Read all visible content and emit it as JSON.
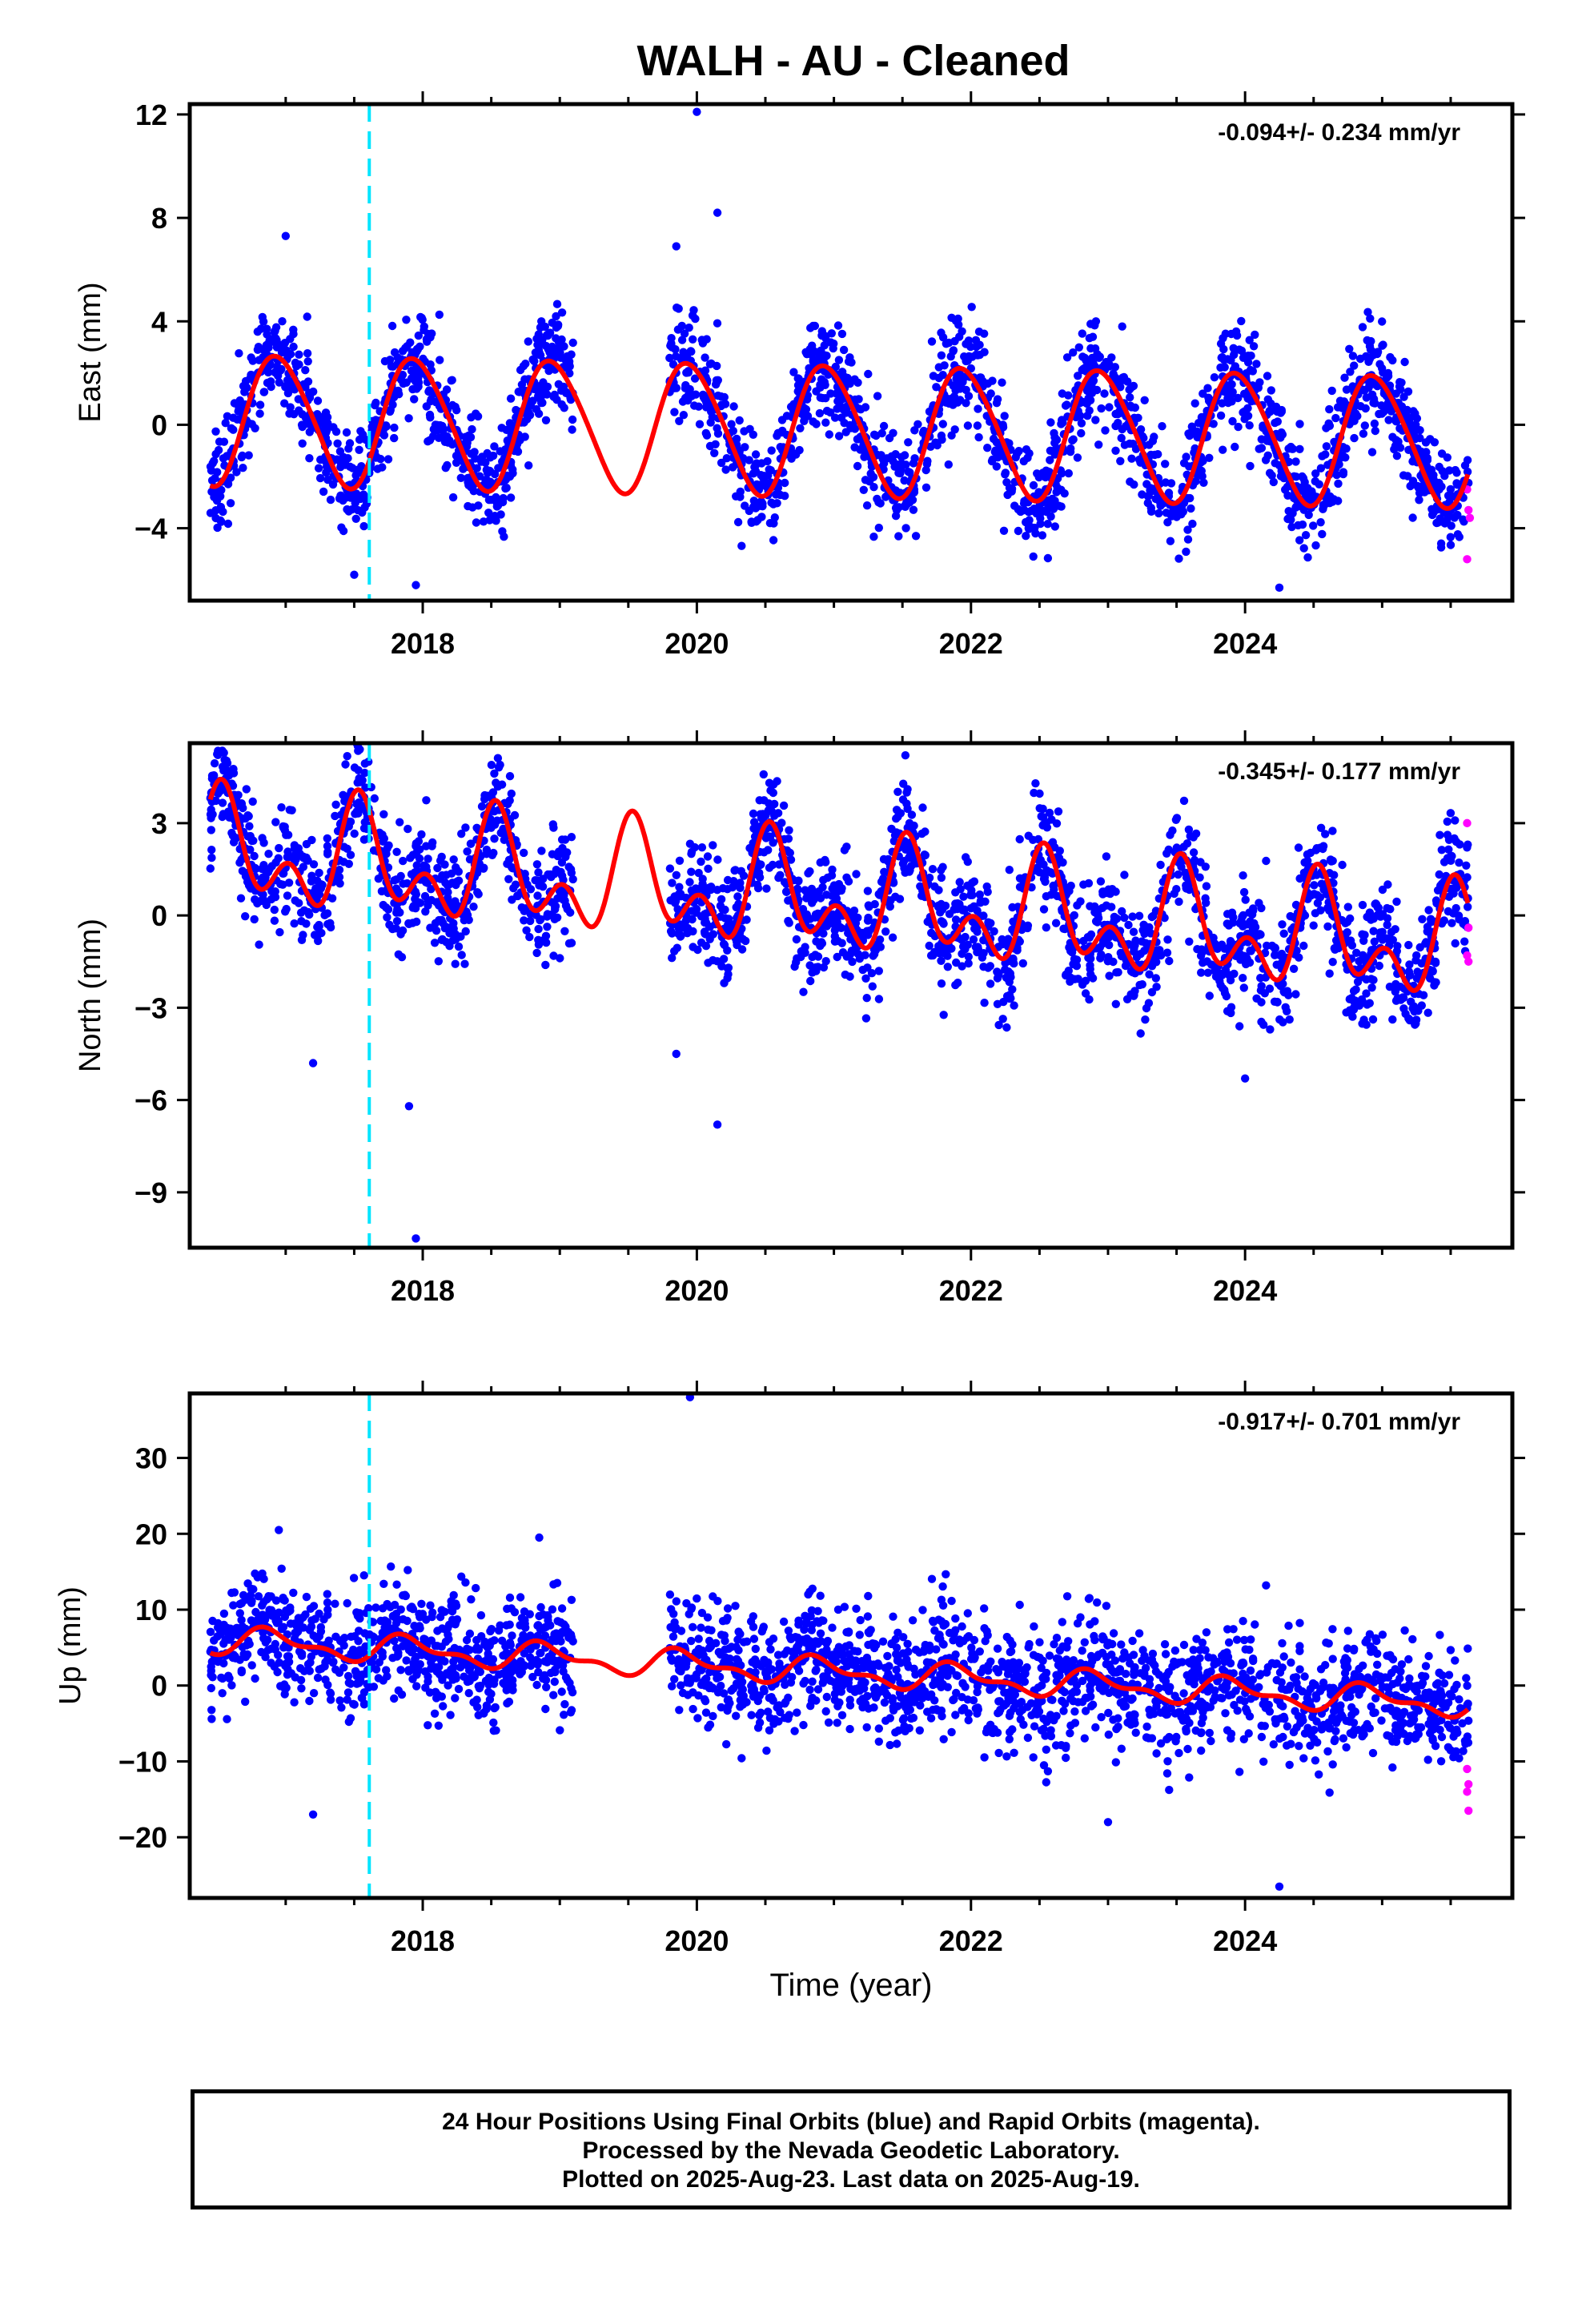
{
  "title": "WALH  - AU - Cleaned",
  "xlabel": "Time (year)",
  "colors": {
    "final_orbits": "#0000ff",
    "rapid_orbits": "#ff00ff",
    "model": "#ff0000",
    "event_line": "#00e5ff"
  },
  "footer": {
    "line1": "24 Hour Positions Using Final Orbits (blue) and Rapid Orbits (magenta).",
    "line2": "Processed by the Nevada Geodetic Laboratory.",
    "line3": "Plotted on 2025-Aug-23. Last data on 2025-Aug-19."
  },
  "chart_data": [
    {
      "type": "scatter",
      "ylabel": "East (mm)",
      "rate_text": "-0.094+/- 0.234 mm/yr",
      "xlim": [
        2016.3,
        2025.95
      ],
      "ylim": [
        -6.8,
        12.4
      ],
      "xticks": [
        2018,
        2020,
        2022,
        2024
      ],
      "yticks": [
        -4,
        0,
        4,
        8,
        12
      ],
      "event_line_x": 2017.61,
      "data_span": [
        2016.45,
        2025.63
      ],
      "gap": [
        2019.1,
        2019.8
      ],
      "model": {
        "offset": -0.2,
        "trend": -0.094,
        "annual_amp": 2.5,
        "annual_peak": 2017.95,
        "semiannual_amp": 0.25,
        "semiannual_phase": 0.3,
        "step_at_event": 0.5
      },
      "scatter_sigma": 1.0,
      "rapid_points": [
        [
          2025.62,
          -2.5
        ],
        [
          2025.63,
          -3.3
        ],
        [
          2025.64,
          -3.6
        ],
        [
          2025.62,
          -5.2
        ]
      ],
      "outliers": [
        [
          2020.0,
          12.1
        ],
        [
          2020.15,
          8.2
        ],
        [
          2019.85,
          6.9
        ],
        [
          2017.0,
          7.3
        ],
        [
          2017.95,
          -6.2
        ],
        [
          2017.5,
          -5.8
        ],
        [
          2024.25,
          -6.3
        ]
      ],
      "legend": []
    },
    {
      "type": "scatter",
      "ylabel": "North (mm)",
      "rate_text": "-0.345+/- 0.177 mm/yr",
      "xlim": [
        2016.3,
        2025.95
      ],
      "ylim": [
        -10.8,
        5.6
      ],
      "xticks": [
        2018,
        2020,
        2022,
        2024
      ],
      "yticks": [
        -9,
        -6,
        -3,
        0,
        3
      ],
      "event_line_x": 2017.61,
      "data_span": [
        2016.45,
        2025.63
      ],
      "gap": [
        2019.1,
        2019.8
      ],
      "model": {
        "offset": 0.5,
        "trend": -0.345,
        "annual_amp": 1.3,
        "annual_peak": 2016.55,
        "semiannual_amp": 1.1,
        "semiannual_phase": 0.05,
        "step_at_event": 0.6
      },
      "scatter_sigma": 0.9,
      "rapid_points": [
        [
          2025.62,
          3.0
        ],
        [
          2025.63,
          -0.4
        ],
        [
          2025.62,
          -1.3
        ],
        [
          2025.63,
          -1.5
        ]
      ],
      "outliers": [
        [
          2017.95,
          -10.5
        ],
        [
          2017.9,
          -6.2
        ],
        [
          2020.15,
          -6.8
        ],
        [
          2017.2,
          -4.8
        ],
        [
          2024.0,
          -5.3
        ],
        [
          2019.85,
          -4.5
        ]
      ],
      "legend": []
    },
    {
      "type": "scatter",
      "ylabel": "Up (mm)",
      "rate_text": "-0.917+/- 0.701 mm/yr",
      "xlim": [
        2016.3,
        2025.95
      ],
      "ylim": [
        -28,
        38.5
      ],
      "xticks": [
        2018,
        2020,
        2022,
        2024
      ],
      "yticks": [
        -20,
        -10,
        0,
        10,
        20,
        30
      ],
      "event_line_x": 2017.61,
      "data_span": [
        2016.45,
        2025.63
      ],
      "gap": [
        2019.1,
        2019.8
      ],
      "model": {
        "offset": 1.8,
        "trend": -0.917,
        "annual_amp": 1.5,
        "annual_peak": 2016.9,
        "semiannual_amp": 0.8,
        "semiannual_phase": 0.2,
        "step_at_event": 3.0
      },
      "scatter_sigma": 3.8,
      "rapid_points": [
        [
          2025.62,
          -11.0
        ],
        [
          2025.63,
          -13.0
        ],
        [
          2025.62,
          -14.0
        ],
        [
          2025.63,
          -16.5
        ]
      ],
      "outliers": [
        [
          2019.95,
          38.0
        ],
        [
          2016.95,
          20.5
        ],
        [
          2018.85,
          19.5
        ],
        [
          2024.25,
          -26.5
        ],
        [
          2017.2,
          -17.0
        ],
        [
          2023.0,
          -18.0
        ]
      ],
      "legend": []
    }
  ]
}
